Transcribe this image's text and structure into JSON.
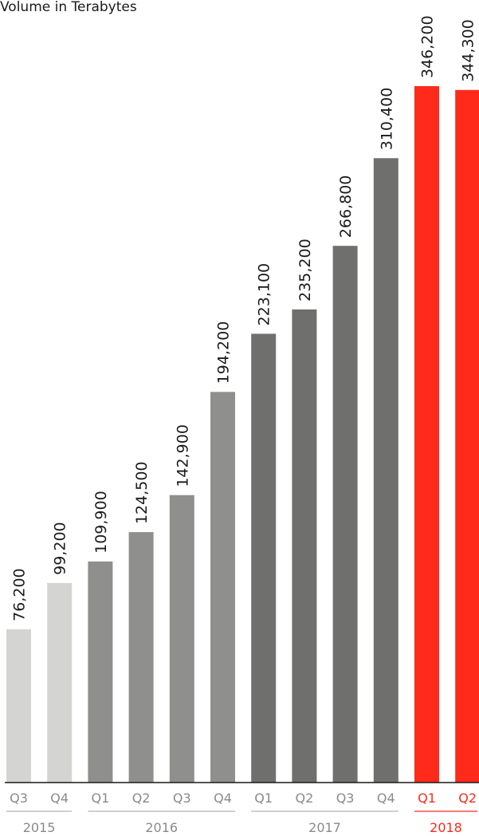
{
  "chart_data": {
    "type": "bar",
    "title": "",
    "subtitle": "Volume in Terabytes",
    "xlabel": "",
    "ylabel": "",
    "unit": "Terabytes",
    "grid": false,
    "legend": "none",
    "categories": [
      "Q3",
      "Q4",
      "Q1",
      "Q2",
      "Q3",
      "Q4",
      "Q1",
      "Q2",
      "Q3",
      "Q4",
      "Q1",
      "Q2"
    ],
    "years": [
      {
        "label": "2015",
        "quarters": [
          "Q3",
          "Q4"
        ],
        "color": "#8a8a8a"
      },
      {
        "label": "2016",
        "quarters": [
          "Q1",
          "Q2",
          "Q3",
          "Q4"
        ],
        "color": "#8a8a8a"
      },
      {
        "label": "2017",
        "quarters": [
          "Q1",
          "Q2",
          "Q3",
          "Q4"
        ],
        "color": "#8a8a8a"
      },
      {
        "label": "2018",
        "quarters": [
          "Q1",
          "Q2"
        ],
        "color": "#ff2a1a"
      }
    ],
    "values": [
      76200,
      99200,
      109900,
      124500,
      142900,
      194200,
      223100,
      235200,
      266800,
      310400,
      346200,
      344300
    ],
    "value_labels": [
      "76,200",
      "99,200",
      "109,900",
      "124,500",
      "142,900",
      "194,200",
      "223,100",
      "235,200",
      "266,800",
      "310,400",
      "346,200",
      "344,300"
    ],
    "bar_colors": [
      "#d4d4d2",
      "#d4d4d2",
      "#8f8f8d",
      "#8f8f8d",
      "#8f8f8d",
      "#8f8f8d",
      "#6f6f6d",
      "#6f6f6d",
      "#6f6f6d",
      "#6f6f6d",
      "#ff2a1a",
      "#ff2a1a"
    ],
    "highlight_color": "#ff2a1a",
    "ylim": [
      0,
      346200
    ]
  }
}
